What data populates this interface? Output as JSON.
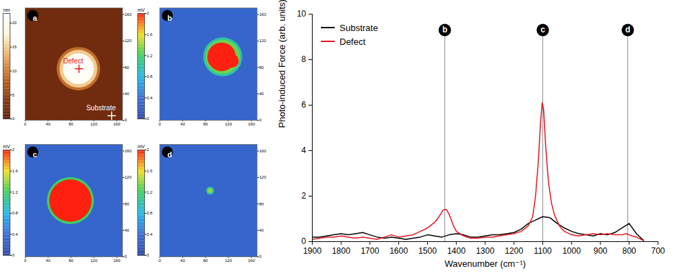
{
  "chart_data": [
    {
      "type": "heatmap",
      "panel": "a",
      "xlim": [
        0,
        170
      ],
      "ylim": [
        0,
        170
      ],
      "xticks": [
        0,
        40,
        80,
        120,
        160
      ],
      "yticks": [
        0,
        40,
        80,
        120,
        160
      ],
      "background": 2,
      "spots": [
        {
          "x": 93,
          "y": 78,
          "r": 38,
          "value": 9
        },
        {
          "x": 93,
          "y": 78,
          "r": 33,
          "value": 15
        },
        {
          "x": 93,
          "y": 78,
          "r": 27,
          "value": 21
        }
      ],
      "colorbar": {
        "label": "nm",
        "range": [
          0,
          22
        ],
        "ticks": [
          0,
          5,
          10,
          15,
          20
        ],
        "colors": [
          "#5c1f0a",
          "#8a3a12",
          "#c06a28",
          "#e8b060",
          "#fff4d8",
          "#ffffff"
        ]
      },
      "annotations": [
        {
          "text": "Defect",
          "x": 94,
          "y": 78,
          "color": "#e8141e",
          "marker": "plus"
        },
        {
          "text": "Substrate",
          "x": 151,
          "y": 7,
          "color": "#ffffff",
          "marker": "plus"
        }
      ]
    },
    {
      "type": "heatmap",
      "panel": "b",
      "xlim": [
        0,
        170
      ],
      "ylim": [
        0,
        170
      ],
      "xticks": [
        0,
        40,
        80,
        120,
        160
      ],
      "yticks": [
        0,
        40,
        80,
        120,
        160
      ],
      "background": 0.3,
      "spots": [
        {
          "x": 110,
          "y": 96,
          "r": 34,
          "value": 1.0
        },
        {
          "x": 110,
          "y": 96,
          "r": 30,
          "value": 1.3
        },
        {
          "x": 108,
          "y": 96,
          "r": 25,
          "value": 2
        },
        {
          "x": 126,
          "y": 90,
          "r": 12,
          "value": 2
        }
      ],
      "colorbar": {
        "label": "mV",
        "range": [
          0,
          2
        ],
        "ticks": [
          0,
          0.4,
          0.8,
          1.2,
          1.6,
          2
        ],
        "colors": [
          "#2b4aa8",
          "#3a6fd8",
          "#22b8e8",
          "#3cd060",
          "#f0e020",
          "#ff2010"
        ]
      },
      "annotations": []
    },
    {
      "type": "heatmap",
      "panel": "c",
      "xlim": [
        0,
        170
      ],
      "ylim": [
        0,
        170
      ],
      "xticks": [
        0,
        40,
        80,
        120,
        160
      ],
      "yticks": [
        0,
        40,
        80,
        120,
        160
      ],
      "background": 0.3,
      "spots": [
        {
          "x": 79,
          "y": 85,
          "r": 41,
          "value": 1.2
        },
        {
          "x": 79,
          "y": 85,
          "r": 37,
          "value": 2
        }
      ],
      "colorbar": {
        "label": "mV",
        "range": [
          0,
          2
        ],
        "ticks": [
          0,
          0.4,
          0.8,
          1.2,
          1.6,
          2
        ],
        "colors": [
          "#2b4aa8",
          "#3a6fd8",
          "#22b8e8",
          "#3cd060",
          "#f0e020",
          "#ff2010"
        ]
      },
      "annotations": []
    },
    {
      "type": "heatmap",
      "panel": "d",
      "xlim": [
        0,
        170
      ],
      "ylim": [
        0,
        170
      ],
      "xticks": [
        0,
        40,
        80,
        120,
        160
      ],
      "yticks": [
        0,
        40,
        80,
        120,
        160
      ],
      "background": 0.3,
      "spots": [
        {
          "x": 88,
          "y": 100,
          "r": 7,
          "value": 1.0
        },
        {
          "x": 88,
          "y": 100,
          "r": 4,
          "value": 1.4
        }
      ],
      "colorbar": {
        "label": "mV",
        "range": [
          0,
          2
        ],
        "ticks": [
          0,
          0.4,
          0.8,
          1.2,
          1.6,
          2
        ],
        "colors": [
          "#2b4aa8",
          "#3a6fd8",
          "#22b8e8",
          "#3cd060",
          "#f0e020",
          "#ff2010"
        ]
      },
      "annotations": []
    },
    {
      "type": "line",
      "xlabel": "Wavenumber (cm⁻¹)",
      "ylabel": "Photo-induced Force (arb. units)",
      "xlim": [
        1900,
        700
      ],
      "ylim": [
        0,
        10
      ],
      "xticks": [
        1900,
        1800,
        1700,
        1600,
        1500,
        1400,
        1300,
        1200,
        1100,
        1000,
        900,
        800,
        700
      ],
      "yticks": [
        0,
        2,
        4,
        6,
        8,
        10
      ],
      "grid": false,
      "legend": "top-left",
      "series": [
        {
          "name": "Substrate",
          "color": "#000000",
          "x": [
            1900,
            1875,
            1850,
            1825,
            1800,
            1775,
            1750,
            1725,
            1700,
            1675,
            1650,
            1625,
            1600,
            1575,
            1550,
            1525,
            1500,
            1475,
            1450,
            1425,
            1400,
            1375,
            1350,
            1325,
            1300,
            1275,
            1250,
            1225,
            1200,
            1175,
            1150,
            1125,
            1100,
            1075,
            1050,
            1025,
            1000,
            975,
            950,
            925,
            900,
            875,
            850,
            825,
            800,
            775,
            750
          ],
          "values": [
            0.2,
            0.2,
            0.25,
            0.3,
            0.35,
            0.3,
            0.35,
            0.4,
            0.3,
            0.2,
            0.15,
            0.2,
            0.15,
            0.1,
            0.15,
            0.2,
            0.3,
            0.25,
            0.2,
            0.3,
            0.35,
            0.3,
            0.2,
            0.2,
            0.25,
            0.3,
            0.3,
            0.35,
            0.4,
            0.55,
            0.8,
            0.95,
            1.1,
            1.05,
            0.8,
            0.6,
            0.45,
            0.35,
            0.3,
            0.25,
            0.35,
            0.3,
            0.4,
            0.6,
            0.8,
            0.35,
            0.05
          ]
        },
        {
          "name": "Defect",
          "color": "#e8141e",
          "x": [
            1900,
            1875,
            1850,
            1825,
            1800,
            1775,
            1750,
            1725,
            1700,
            1675,
            1650,
            1625,
            1600,
            1575,
            1550,
            1525,
            1500,
            1475,
            1460,
            1445,
            1435,
            1425,
            1410,
            1400,
            1375,
            1350,
            1325,
            1300,
            1275,
            1250,
            1225,
            1200,
            1175,
            1150,
            1135,
            1125,
            1115,
            1108,
            1102,
            1097,
            1090,
            1080,
            1070,
            1060,
            1050,
            1040,
            1025,
            1000,
            975,
            950,
            925,
            900,
            875,
            850,
            825,
            810,
            800,
            790,
            775,
            760,
            750
          ],
          "values": [
            0.1,
            0.15,
            0.2,
            0.2,
            0.25,
            0.2,
            0.15,
            0.2,
            0.15,
            0.1,
            0.2,
            0.3,
            0.2,
            0.25,
            0.3,
            0.45,
            0.6,
            0.85,
            1.1,
            1.4,
            1.42,
            1.2,
            0.7,
            0.45,
            0.25,
            0.15,
            0.15,
            0.2,
            0.2,
            0.25,
            0.3,
            0.35,
            0.45,
            0.7,
            1.1,
            2.0,
            3.6,
            5.2,
            6.1,
            5.8,
            4.2,
            2.6,
            1.7,
            1.2,
            0.9,
            0.65,
            0.45,
            0.3,
            0.25,
            0.3,
            0.35,
            0.3,
            0.35,
            0.3,
            0.3,
            0.35,
            0.3,
            0.25,
            0.2,
            0.1,
            0.05
          ]
        }
      ],
      "markers": [
        {
          "label": "b",
          "x": 1440,
          "y": 9.3
        },
        {
          "label": "c",
          "x": 1100,
          "y": 9.3
        },
        {
          "label": "d",
          "x": 805,
          "y": 9.3
        }
      ]
    }
  ]
}
